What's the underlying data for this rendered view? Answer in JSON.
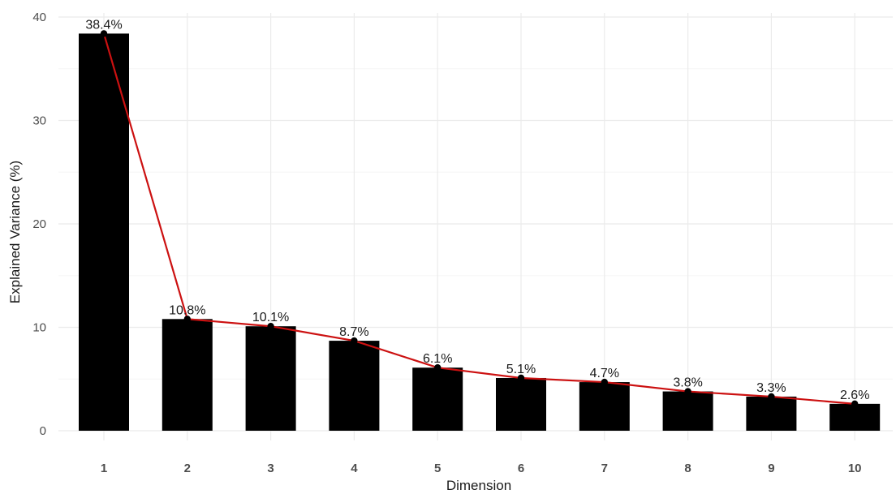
{
  "chart_data": {
    "type": "bar",
    "categories": [
      "1",
      "2",
      "3",
      "4",
      "5",
      "6",
      "7",
      "8",
      "9",
      "10"
    ],
    "values": [
      38.4,
      10.8,
      10.1,
      8.7,
      6.1,
      5.1,
      4.7,
      3.8,
      3.3,
      2.6
    ],
    "labels": [
      "38.4%",
      "10.8%",
      "10.1%",
      "8.7%",
      "6.1%",
      "5.1%",
      "4.7%",
      "3.8%",
      "3.3%",
      "2.6%"
    ],
    "overlay": "line",
    "title": "",
    "xlabel": "Dimension",
    "ylabel": "Explained Variance (%)",
    "ylim": [
      0,
      40
    ],
    "yticks": [
      0,
      10,
      20,
      30,
      40
    ],
    "grid": true,
    "legend": "none",
    "colors": {
      "bar": "#000000",
      "line": "#cc1111",
      "point": "#000000",
      "grid_major": "#ebebeb",
      "grid_minor": "#f5f5f5"
    }
  }
}
